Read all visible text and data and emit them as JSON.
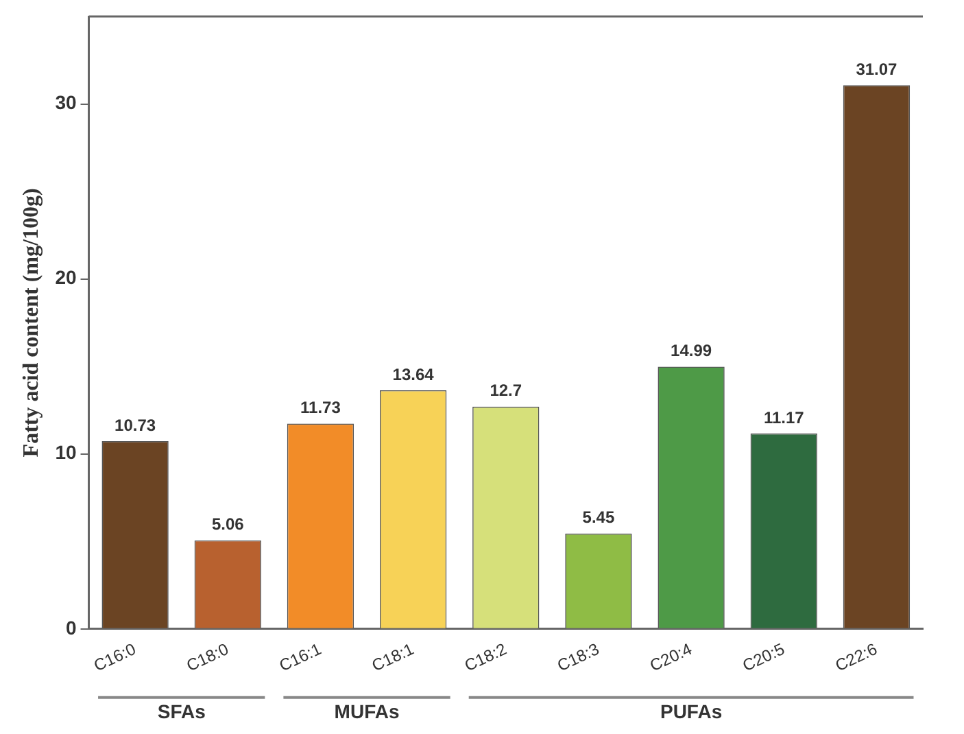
{
  "chart_data": {
    "type": "bar",
    "ylabel": "Fatty acid content (mg/100g)",
    "categories": [
      "C16:0",
      "C18:0",
      "C16:1",
      "C18:1",
      "C18:2",
      "C18:3",
      "C20:4",
      "C20:5",
      "C22:6"
    ],
    "values": [
      10.73,
      5.06,
      11.73,
      13.64,
      12.7,
      5.45,
      14.99,
      11.17,
      31.07
    ],
    "colors": [
      "#6b4423",
      "#b8612f",
      "#f28c28",
      "#f7d257",
      "#d6e07a",
      "#8fbc45",
      "#4e9a47",
      "#2e6b3f",
      "#6b4423"
    ],
    "ylim": [
      0,
      35
    ],
    "yticks": [
      0,
      10,
      20,
      30
    ],
    "grid": false,
    "legend": false,
    "data_labels": true,
    "annotations": [
      "SFAs",
      "MUFAs",
      "PUFAs"
    ]
  }
}
